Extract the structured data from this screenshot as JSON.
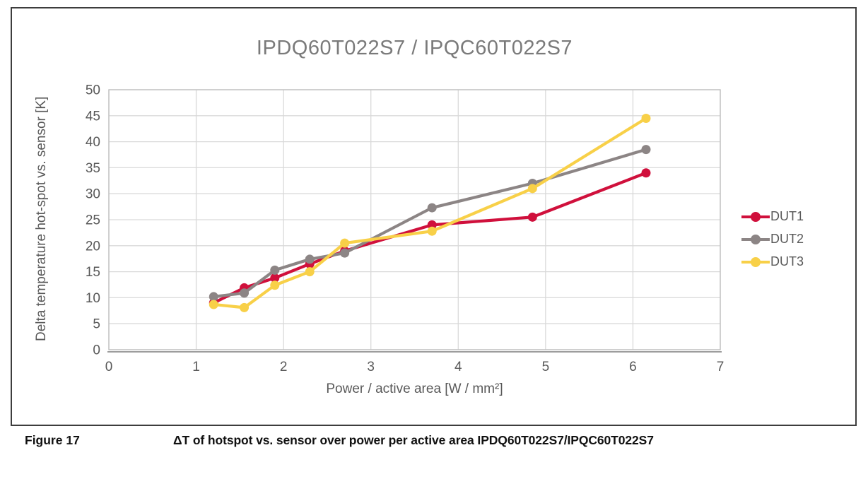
{
  "figure": {
    "caption_label": "Figure 17",
    "caption_text": "ΔT of hotspot vs. sensor over power per active area IPDQ60T022S7/IPQC60T022S7"
  },
  "chart_data": {
    "type": "line",
    "title": "IPDQ60T022S7 / IPQC60T022S7",
    "xlabel": "Power / active area [W / mm²]",
    "ylabel": "Delta temperature hot-spot vs. sensor [K]",
    "xlim": [
      0,
      7
    ],
    "ylim": [
      0,
      50
    ],
    "x_ticks": [
      0,
      1,
      2,
      3,
      4,
      5,
      6,
      7
    ],
    "y_ticks": [
      0,
      5,
      10,
      15,
      20,
      25,
      30,
      35,
      40,
      45,
      50
    ],
    "grid": true,
    "legend_position": "right-middle",
    "x": [
      1.2,
      1.55,
      1.9,
      2.3,
      2.7,
      3.7,
      4.85,
      6.15
    ],
    "series": [
      {
        "name": "DUT1",
        "color": "#d0103c",
        "values": [
          9.0,
          11.9,
          13.8,
          16.5,
          19.0,
          24.0,
          25.5,
          34.0
        ]
      },
      {
        "name": "DUT2",
        "color": "#8c8585",
        "values": [
          10.2,
          10.9,
          15.3,
          17.4,
          18.6,
          27.3,
          32.0,
          38.5
        ]
      },
      {
        "name": "DUT3",
        "color": "#f8d048",
        "values": [
          8.7,
          8.1,
          12.4,
          15.0,
          20.5,
          22.8,
          31.0,
          44.5
        ]
      }
    ],
    "colors": {
      "grid": "#d9d9d9",
      "plot_border": "#c0c0c0",
      "axis_line": "#9d9d9d",
      "tick_text": "#595959",
      "title_text": "#7a7a7a"
    }
  }
}
